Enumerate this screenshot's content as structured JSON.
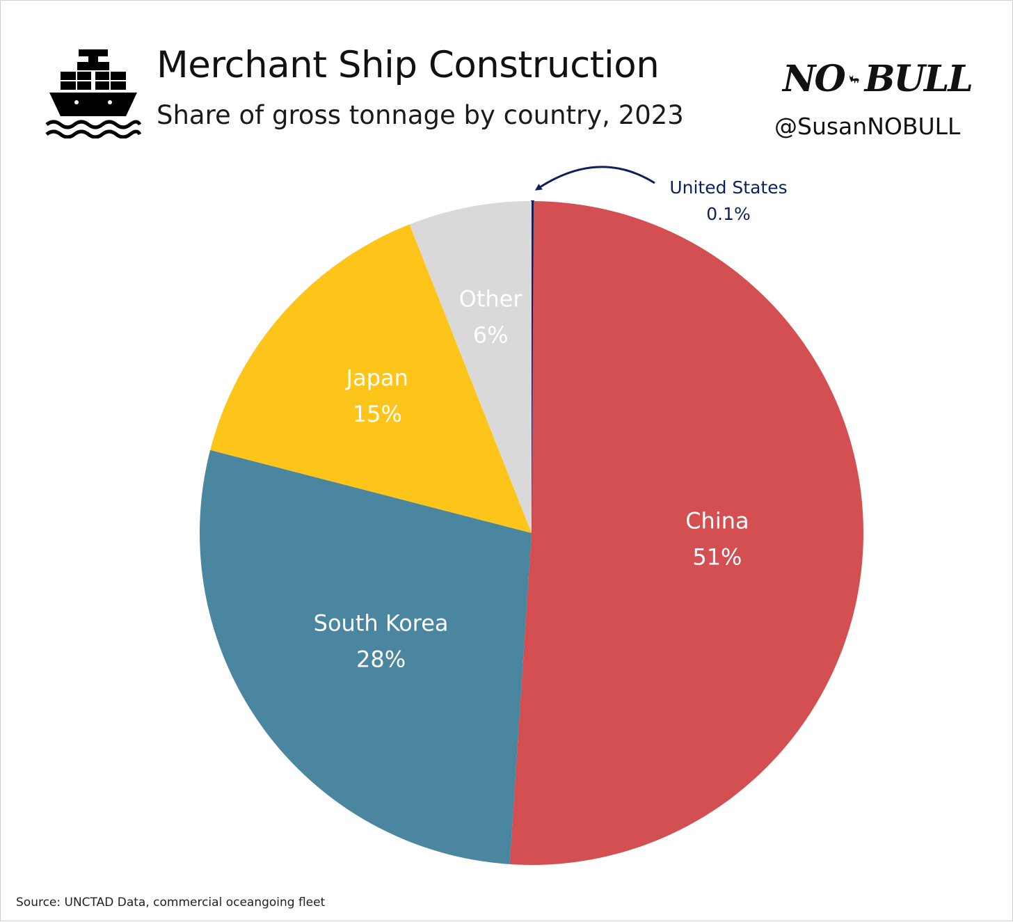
{
  "header": {
    "title": "Merchant Ship Construction",
    "subtitle": "Share of gross tonnage by country, 2023",
    "icon": "cargo-ship-icon"
  },
  "brand": {
    "word_left": "NO",
    "word_right": "BULL",
    "icon": "bull-icon",
    "handle": "@SusanNOBULL"
  },
  "chart_data": {
    "type": "pie",
    "title": "Merchant Ship Construction",
    "subtitle": "Share of gross tonnage by country, 2023",
    "start": "12 o'clock, clockwise",
    "slices": [
      {
        "name": "United States",
        "label": "0.1%",
        "value": 0.1,
        "color": "#0f1f5c",
        "callout": true
      },
      {
        "name": "China",
        "label": "51%",
        "value": 51,
        "color": "#d44f52"
      },
      {
        "name": "South Korea",
        "label": "28%",
        "value": 28,
        "color": "#4b86a0"
      },
      {
        "name": "Japan",
        "label": "15%",
        "value": 15,
        "color": "#fdc51a"
      },
      {
        "name": "Other",
        "label": "6%",
        "value": 6,
        "color": "#d9d9d9"
      }
    ]
  },
  "footer": {
    "source": "Source: UNCTAD Data, commercial oceangoing fleet"
  }
}
